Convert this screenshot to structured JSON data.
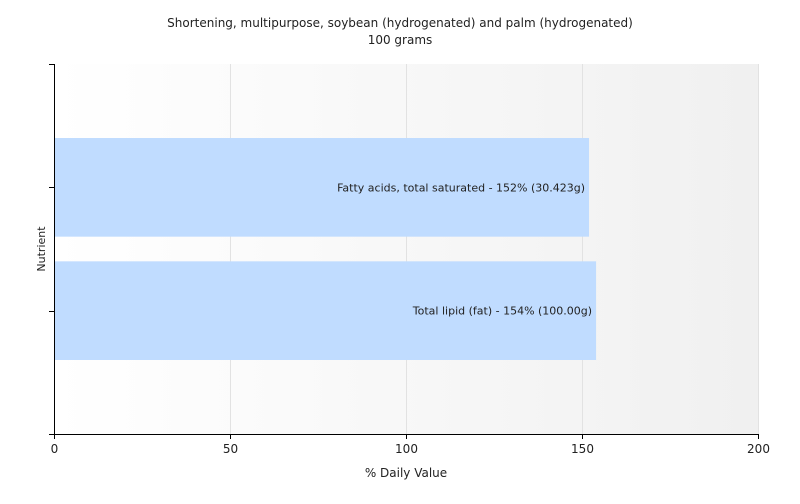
{
  "chart_data": {
    "type": "bar",
    "orientation": "horizontal",
    "title": "Shortening, multipurpose, soybean (hydrogenated) and palm (hydrogenated)",
    "subtitle": "100 grams",
    "xlabel": "% Daily Value",
    "ylabel": "Nutrient",
    "xlim": [
      0,
      200
    ],
    "xticks": [
      0,
      50,
      100,
      150,
      200
    ],
    "grid": true,
    "categories": [
      "Total lipid (fat)",
      "Fatty acids, total saturated"
    ],
    "values": [
      154,
      152
    ],
    "bar_labels": [
      "Total lipid (fat) - 154% (100.00g)",
      "Fatty acids, total saturated - 152% (30.423g)"
    ],
    "bar_color": "#c0dcff"
  }
}
